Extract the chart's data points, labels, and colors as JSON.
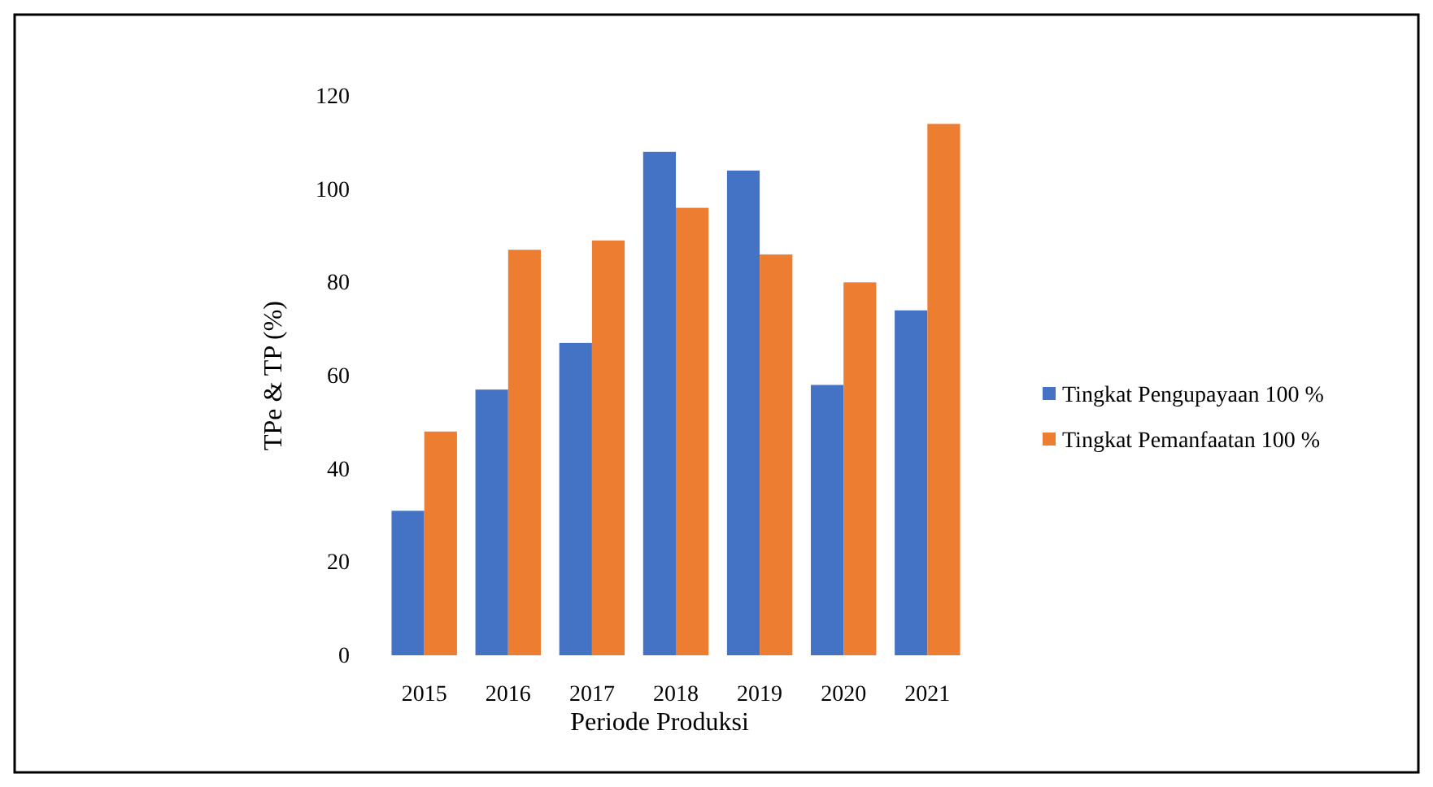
{
  "chart_data": {
    "type": "bar",
    "categories": [
      "2015",
      "2016",
      "2017",
      "2018",
      "2019",
      "2020",
      "2021"
    ],
    "series": [
      {
        "name": "Tingkat Pengupayaan 100 %",
        "color": "#4472c4",
        "values": [
          31,
          57,
          67,
          108,
          104,
          58,
          74
        ]
      },
      {
        "name": "Tingkat Pemanfaatan 100 %",
        "color": "#ed7d31",
        "values": [
          48,
          87,
          89,
          96,
          86,
          80,
          114
        ]
      }
    ],
    "xlabel": "Periode Produksi",
    "ylabel": "TPe & TP (%)",
    "ylim": [
      0,
      120
    ],
    "yticks": [
      0,
      20,
      40,
      60,
      80,
      100,
      120
    ],
    "grid": false,
    "legend": "right"
  }
}
